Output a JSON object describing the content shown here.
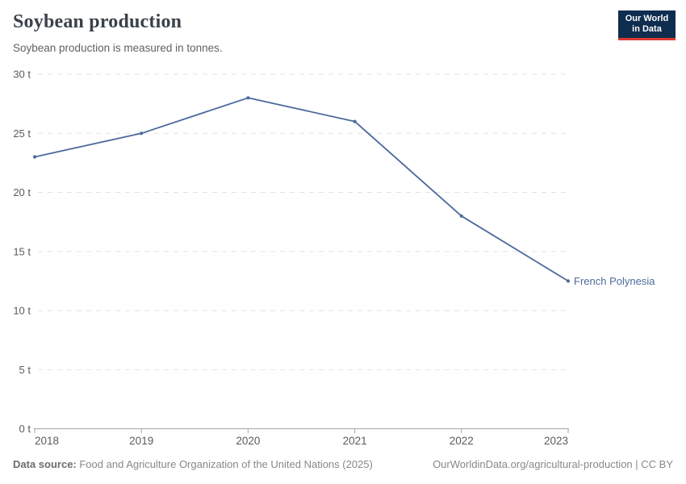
{
  "header": {
    "title": "Soybean production",
    "subtitle": "Soybean production is measured in tonnes."
  },
  "logo": {
    "line1": "Our World",
    "line2": "in Data",
    "bg_color": "#0f2d4e",
    "accent_color": "#d93a2d"
  },
  "footer": {
    "source_label": "Data source:",
    "source_text": " Food and Agriculture Organization of the United Nations (2025)",
    "right_text": "OurWorldinData.org/agricultural-production | CC BY"
  },
  "chart_data": {
    "type": "line",
    "title": "Soybean production",
    "subtitle": "Soybean production is measured in tonnes.",
    "unit": "t",
    "x": [
      2018,
      2019,
      2020,
      2021,
      2022,
      2023
    ],
    "x_tick_labels": [
      "2018",
      "2019",
      "2020",
      "2021",
      "2022",
      "2023"
    ],
    "series": [
      {
        "name": "French Polynesia",
        "color": "#4c6a9c",
        "values": [
          23,
          25,
          28,
          26,
          18,
          12.5
        ]
      }
    ],
    "ylim": [
      0,
      30
    ],
    "yticks": [
      0,
      5,
      10,
      15,
      20,
      25,
      30
    ],
    "ytick_suffix": " t",
    "grid": "horizontal-dashed",
    "legend": "end-of-line-label",
    "colors": {
      "gridline": "#e2e2e2",
      "axis": "#a5a5a5",
      "tick_text": "#5b5b5b"
    }
  }
}
